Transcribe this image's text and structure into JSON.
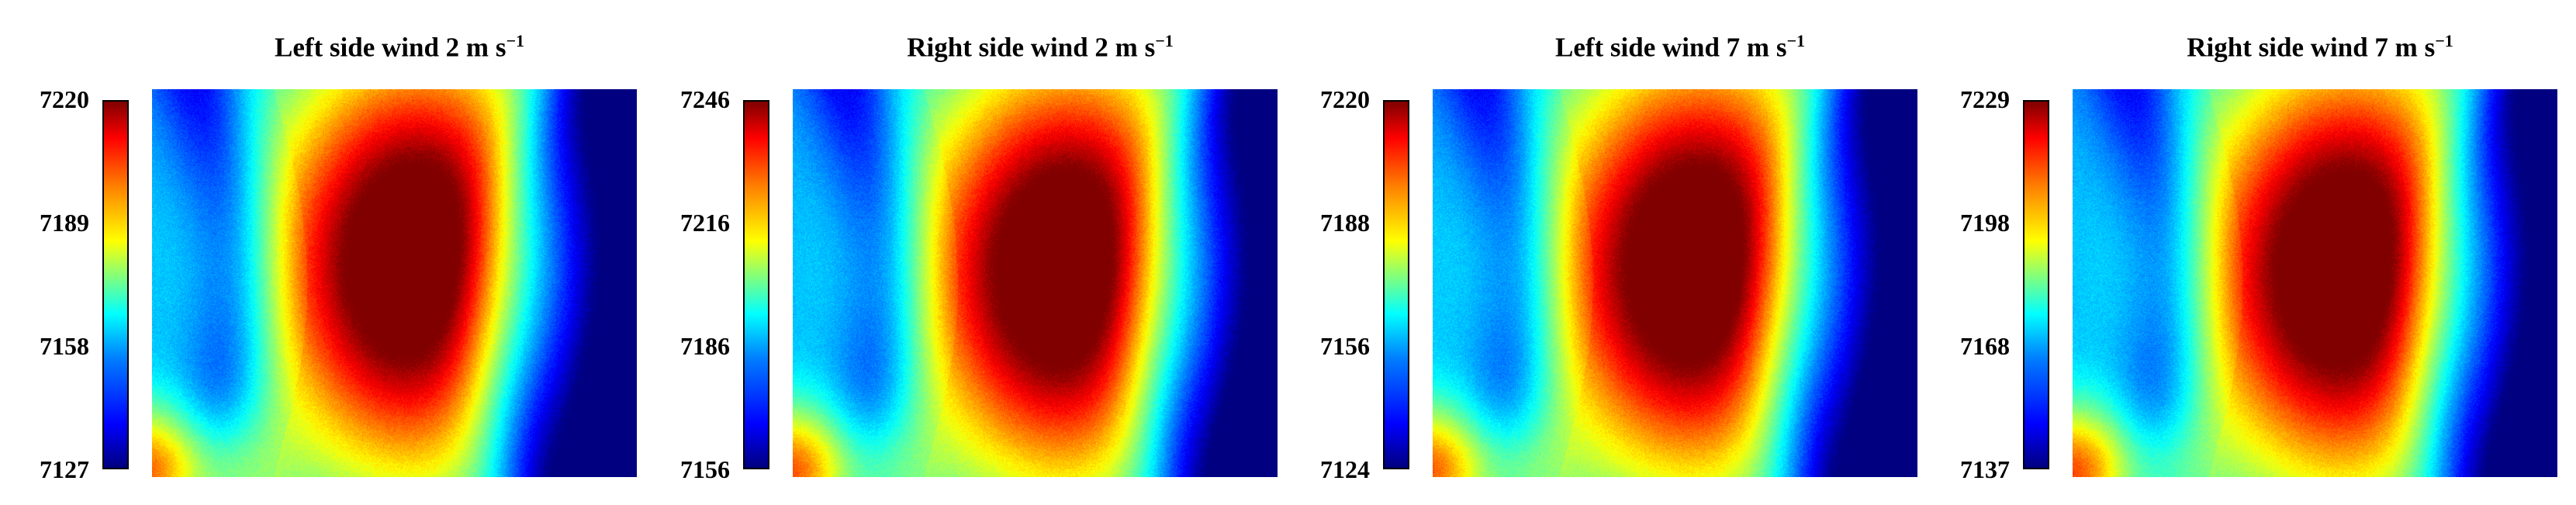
{
  "chart_data": [
    {
      "type": "heatmap",
      "title": "Left side wind 2 m s",
      "title_unit_power": "−1",
      "colorbar_ticks": [
        "7220",
        "7189",
        "7158",
        "7127"
      ],
      "colorbar_range": [
        7127,
        7220
      ],
      "colormap": "jet",
      "hotspot": {
        "cx": 0.56,
        "cy": 0.45
      },
      "band": {
        "left_shift": 0.0,
        "right_edge": 0.83
      }
    },
    {
      "type": "heatmap",
      "title": "Right side wind 2 m s",
      "title_unit_power": "−1",
      "colorbar_ticks": [
        "7246",
        "7216",
        "7186",
        "7156"
      ],
      "colorbar_range": [
        7156,
        7246
      ],
      "colormap": "jet",
      "hotspot": {
        "cx": 0.58,
        "cy": 0.47
      },
      "band": {
        "left_shift": 0.02,
        "right_edge": 0.86
      }
    },
    {
      "type": "heatmap",
      "title": "Left side wind 7 m s",
      "title_unit_power": "−1",
      "colorbar_ticks": [
        "7220",
        "7188",
        "7156",
        "7124"
      ],
      "colorbar_range": [
        7124,
        7220
      ],
      "colormap": "jet",
      "hotspot": {
        "cx": 0.56,
        "cy": 0.46
      },
      "band": {
        "left_shift": 0.01,
        "right_edge": 0.84
      }
    },
    {
      "type": "heatmap",
      "title": "Right side wind 7 m s",
      "title_unit_power": "−1",
      "colorbar_ticks": [
        "7229",
        "7198",
        "7168",
        "7137"
      ],
      "colorbar_range": [
        7137,
        7229
      ],
      "colormap": "jet",
      "hotspot": {
        "cx": 0.58,
        "cy": 0.47
      },
      "band": {
        "left_shift": 0.03,
        "right_edge": 0.86
      }
    }
  ]
}
